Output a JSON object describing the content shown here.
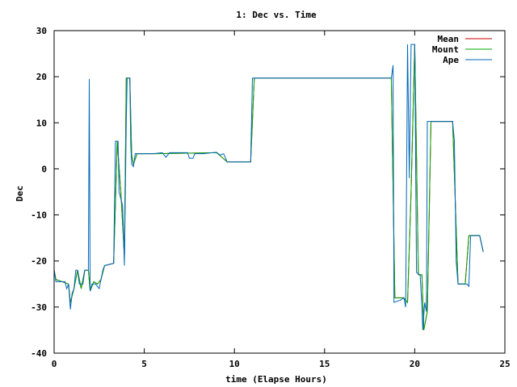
{
  "chart_data": {
    "type": "line",
    "title": "1: Dec vs. Time",
    "xlabel": "time (Elapse Hours)",
    "ylabel": "Dec",
    "xlim": [
      0,
      25
    ],
    "ylim": [
      -40,
      30
    ],
    "xticks": [
      0,
      5,
      10,
      15,
      20,
      25
    ],
    "yticks": [
      -40,
      -30,
      -20,
      -10,
      0,
      10,
      20,
      30
    ],
    "grid": false,
    "legend_position": "top-right",
    "series": [
      {
        "name": "Mean",
        "color": "#cc0000",
        "values": [
          [
            0.0,
            -22
          ],
          [
            0.1,
            -24
          ],
          [
            0.8,
            -25
          ],
          [
            0.9,
            -29
          ],
          [
            1.1,
            -26
          ],
          [
            1.3,
            -22
          ],
          [
            1.5,
            -26
          ],
          [
            1.7,
            -22
          ],
          [
            1.9,
            -22
          ],
          [
            2.0,
            -26.5
          ],
          [
            2.2,
            -24.5
          ],
          [
            2.4,
            -25
          ],
          [
            2.6,
            -24
          ],
          [
            2.8,
            -21
          ],
          [
            3.3,
            -20.5
          ],
          [
            3.5,
            6
          ],
          [
            3.7,
            -5
          ],
          [
            3.9,
            -19
          ],
          [
            4.0,
            19.7
          ],
          [
            4.2,
            19.7
          ],
          [
            4.3,
            3
          ],
          [
            4.4,
            1
          ],
          [
            4.6,
            3.3
          ],
          [
            5.5,
            3.3
          ],
          [
            5.6,
            3.3
          ],
          [
            9.0,
            3.5
          ],
          [
            9.2,
            2.9
          ],
          [
            9.6,
            1.5
          ],
          [
            10.9,
            1.5
          ],
          [
            11.1,
            19.7
          ],
          [
            15.3,
            19.7
          ],
          [
            18.7,
            19.7
          ],
          [
            18.9,
            -28
          ],
          [
            19.4,
            -28
          ],
          [
            19.6,
            -29
          ],
          [
            19.8,
            -5
          ],
          [
            20.0,
            27
          ],
          [
            20.2,
            -23
          ],
          [
            20.4,
            -23
          ],
          [
            20.5,
            -35
          ],
          [
            20.7,
            -31
          ],
          [
            20.9,
            10.3
          ],
          [
            22.1,
            10.3
          ],
          [
            22.4,
            -25
          ],
          [
            22.8,
            -25
          ],
          [
            23.0,
            -14.5
          ],
          [
            23.6,
            -14.5
          ],
          [
            23.8,
            -18
          ]
        ]
      },
      {
        "name": "Mount",
        "color": "#00aa00",
        "values": [
          [
            0.0,
            -22
          ],
          [
            0.1,
            -24
          ],
          [
            0.8,
            -25
          ],
          [
            0.9,
            -29
          ],
          [
            1.1,
            -26
          ],
          [
            1.3,
            -22
          ],
          [
            1.5,
            -26
          ],
          [
            1.7,
            -22
          ],
          [
            1.9,
            -22
          ],
          [
            2.0,
            -26.5
          ],
          [
            2.2,
            -24.5
          ],
          [
            2.4,
            -25
          ],
          [
            2.6,
            -24
          ],
          [
            2.8,
            -21
          ],
          [
            3.3,
            -20.5
          ],
          [
            3.5,
            6
          ],
          [
            3.7,
            -5
          ],
          [
            3.9,
            -19
          ],
          [
            4.0,
            19.7
          ],
          [
            4.2,
            19.7
          ],
          [
            4.3,
            3
          ],
          [
            4.4,
            1
          ],
          [
            4.6,
            3.3
          ],
          [
            5.5,
            3.3
          ],
          [
            5.6,
            3.3
          ],
          [
            9.0,
            3.5
          ],
          [
            9.2,
            2.9
          ],
          [
            9.6,
            1.5
          ],
          [
            10.9,
            1.5
          ],
          [
            11.1,
            19.7
          ],
          [
            15.3,
            19.7
          ],
          [
            18.7,
            19.7
          ],
          [
            18.9,
            -28
          ],
          [
            19.4,
            -28
          ],
          [
            19.6,
            -29
          ],
          [
            19.8,
            -5
          ],
          [
            20.0,
            27
          ],
          [
            20.2,
            -23
          ],
          [
            20.4,
            -23
          ],
          [
            20.5,
            -35
          ],
          [
            20.7,
            -31
          ],
          [
            20.9,
            10.3
          ],
          [
            22.1,
            10.3
          ],
          [
            22.4,
            -25
          ],
          [
            22.8,
            -25
          ],
          [
            23.0,
            -14.5
          ],
          [
            23.6,
            -14.5
          ],
          [
            23.8,
            -18
          ]
        ]
      },
      {
        "name": "Ape",
        "color": "#0066bb",
        "values": [
          [
            0.0,
            -22
          ],
          [
            0.1,
            -24.5
          ],
          [
            0.6,
            -24.5
          ],
          [
            0.7,
            -26
          ],
          [
            0.8,
            -25
          ],
          [
            0.9,
            -30.5
          ],
          [
            1.0,
            -27
          ],
          [
            1.1,
            -26
          ],
          [
            1.2,
            -22
          ],
          [
            1.3,
            -22
          ],
          [
            1.4,
            -25
          ],
          [
            1.6,
            -25
          ],
          [
            1.7,
            -22
          ],
          [
            1.9,
            -22
          ],
          [
            1.95,
            19.5
          ],
          [
            2.0,
            -26.5
          ],
          [
            2.1,
            -25
          ],
          [
            2.3,
            -25
          ],
          [
            2.5,
            -26
          ],
          [
            2.6,
            -24
          ],
          [
            2.7,
            -22
          ],
          [
            2.8,
            -21
          ],
          [
            3.3,
            -20.5
          ],
          [
            3.4,
            6
          ],
          [
            3.55,
            6
          ],
          [
            3.6,
            -5
          ],
          [
            3.8,
            -8
          ],
          [
            3.9,
            -21
          ],
          [
            4.0,
            10
          ],
          [
            4.05,
            19.7
          ],
          [
            4.2,
            19.7
          ],
          [
            4.25,
            5
          ],
          [
            4.3,
            1
          ],
          [
            4.4,
            0.5
          ],
          [
            4.5,
            3.3
          ],
          [
            5.5,
            3.3
          ],
          [
            6.0,
            3.5
          ],
          [
            6.2,
            2.5
          ],
          [
            6.4,
            3.5
          ],
          [
            7.4,
            3.5
          ],
          [
            7.5,
            2.3
          ],
          [
            7.7,
            2.3
          ],
          [
            7.8,
            3.3
          ],
          [
            8.3,
            3.3
          ],
          [
            9.0,
            3.6
          ],
          [
            9.2,
            3.0
          ],
          [
            9.4,
            3.3
          ],
          [
            9.6,
            1.5
          ],
          [
            10.9,
            1.5
          ],
          [
            11.0,
            19.7
          ],
          [
            15.5,
            19.7
          ],
          [
            18.7,
            19.7
          ],
          [
            18.8,
            22.5
          ],
          [
            18.85,
            -29
          ],
          [
            19.2,
            -28.5
          ],
          [
            19.4,
            -28
          ],
          [
            19.5,
            -30
          ],
          [
            19.6,
            27
          ],
          [
            19.7,
            -2
          ],
          [
            19.8,
            27
          ],
          [
            20.0,
            27
          ],
          [
            20.1,
            -22.5
          ],
          [
            20.3,
            -23
          ],
          [
            20.4,
            -30
          ],
          [
            20.45,
            -35
          ],
          [
            20.55,
            -29
          ],
          [
            20.65,
            -31
          ],
          [
            20.7,
            10.3
          ],
          [
            22.1,
            10.3
          ],
          [
            22.2,
            6
          ],
          [
            22.3,
            -20
          ],
          [
            22.4,
            -25
          ],
          [
            22.9,
            -25
          ],
          [
            23.0,
            -25.5
          ],
          [
            23.1,
            -14.5
          ],
          [
            23.6,
            -14.5
          ],
          [
            23.8,
            -18
          ]
        ]
      }
    ]
  }
}
